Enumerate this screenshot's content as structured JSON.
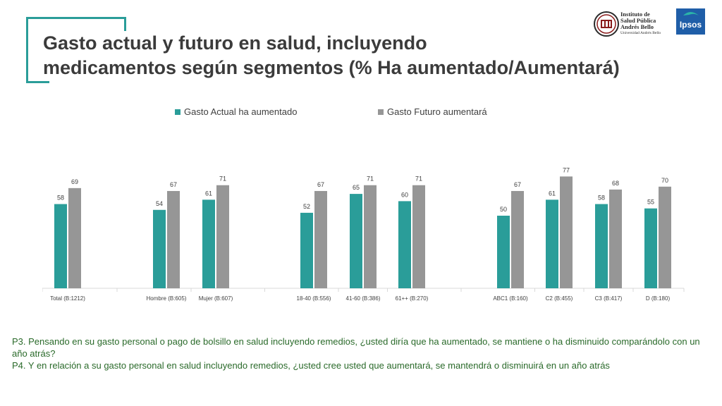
{
  "title": {
    "line1": "Gasto actual y futuro en salud, incluyendo",
    "line2": "medicamentos según segmentos (% Ha aumentado/Aumentará)"
  },
  "logos": {
    "instituto": {
      "line1": "Instituto de",
      "line2": "Salud Pública",
      "line3": "Andrés Bello",
      "line4": "Universidad Andrés Bello"
    },
    "ipsos": "Ipsos"
  },
  "colors": {
    "series1": "#2a9d99",
    "series2": "#969696",
    "accent": "#2a9d99"
  },
  "chart_data": {
    "type": "bar",
    "categories": [
      "Total (B:1212)",
      "Hombre (B:605)",
      "Mujer (B:607)",
      "18-40 (B:556)",
      "41-60 (B:386)",
      "61++ (B:270)",
      "ABC1 (B:160)",
      "C2 (B:455)",
      "C3 (B:417)",
      "D (B:180)"
    ],
    "series": [
      {
        "name": "Gasto Actual ha aumentado",
        "values": [
          58,
          54,
          61,
          52,
          65,
          60,
          50,
          61,
          58,
          55
        ]
      },
      {
        "name": "Gasto Futuro aumentará",
        "values": [
          69,
          67,
          71,
          67,
          71,
          71,
          67,
          77,
          68,
          70
        ]
      }
    ],
    "ylim": [
      0,
      100
    ],
    "legend": "top",
    "grid": false
  },
  "notes": {
    "p3": "P3. Pensando en su gasto personal o pago de bolsillo en salud incluyendo remedios, ¿usted diría que ha aumentado, se mantiene o ha disminuido comparándolo con un año atrás?",
    "p4": "P4. Y en relación a su gasto personal en salud incluyendo remedios, ¿usted cree usted que aumentará, se mantendrá o disminuirá en un año atrás"
  }
}
